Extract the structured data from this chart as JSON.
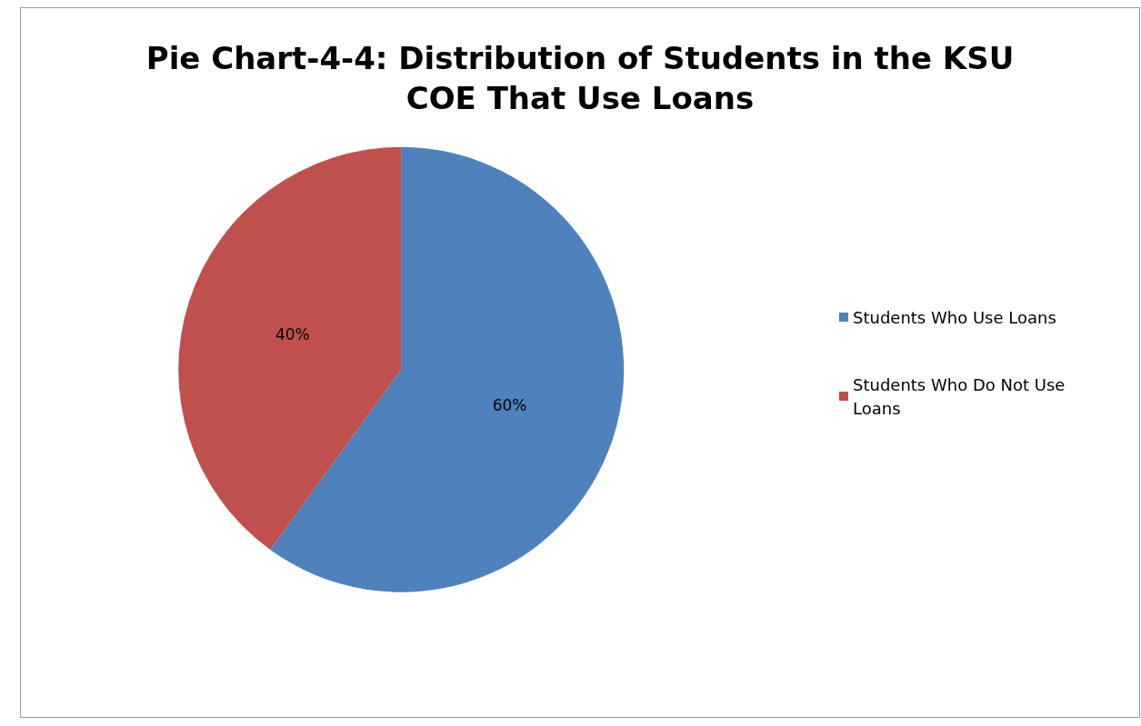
{
  "chart_data": {
    "type": "pie",
    "title": "Pie Chart-4-4: Distribution of Students in the KSU\nCOE That Use Loans",
    "categories": [
      "Students Who Use Loans",
      "Students Who Do Not Use Loans"
    ],
    "values": [
      60,
      40
    ],
    "colors": [
      "#4f81bd",
      "#c0504d"
    ],
    "value_labels": [
      "60%",
      "40%"
    ],
    "legend": "right"
  }
}
